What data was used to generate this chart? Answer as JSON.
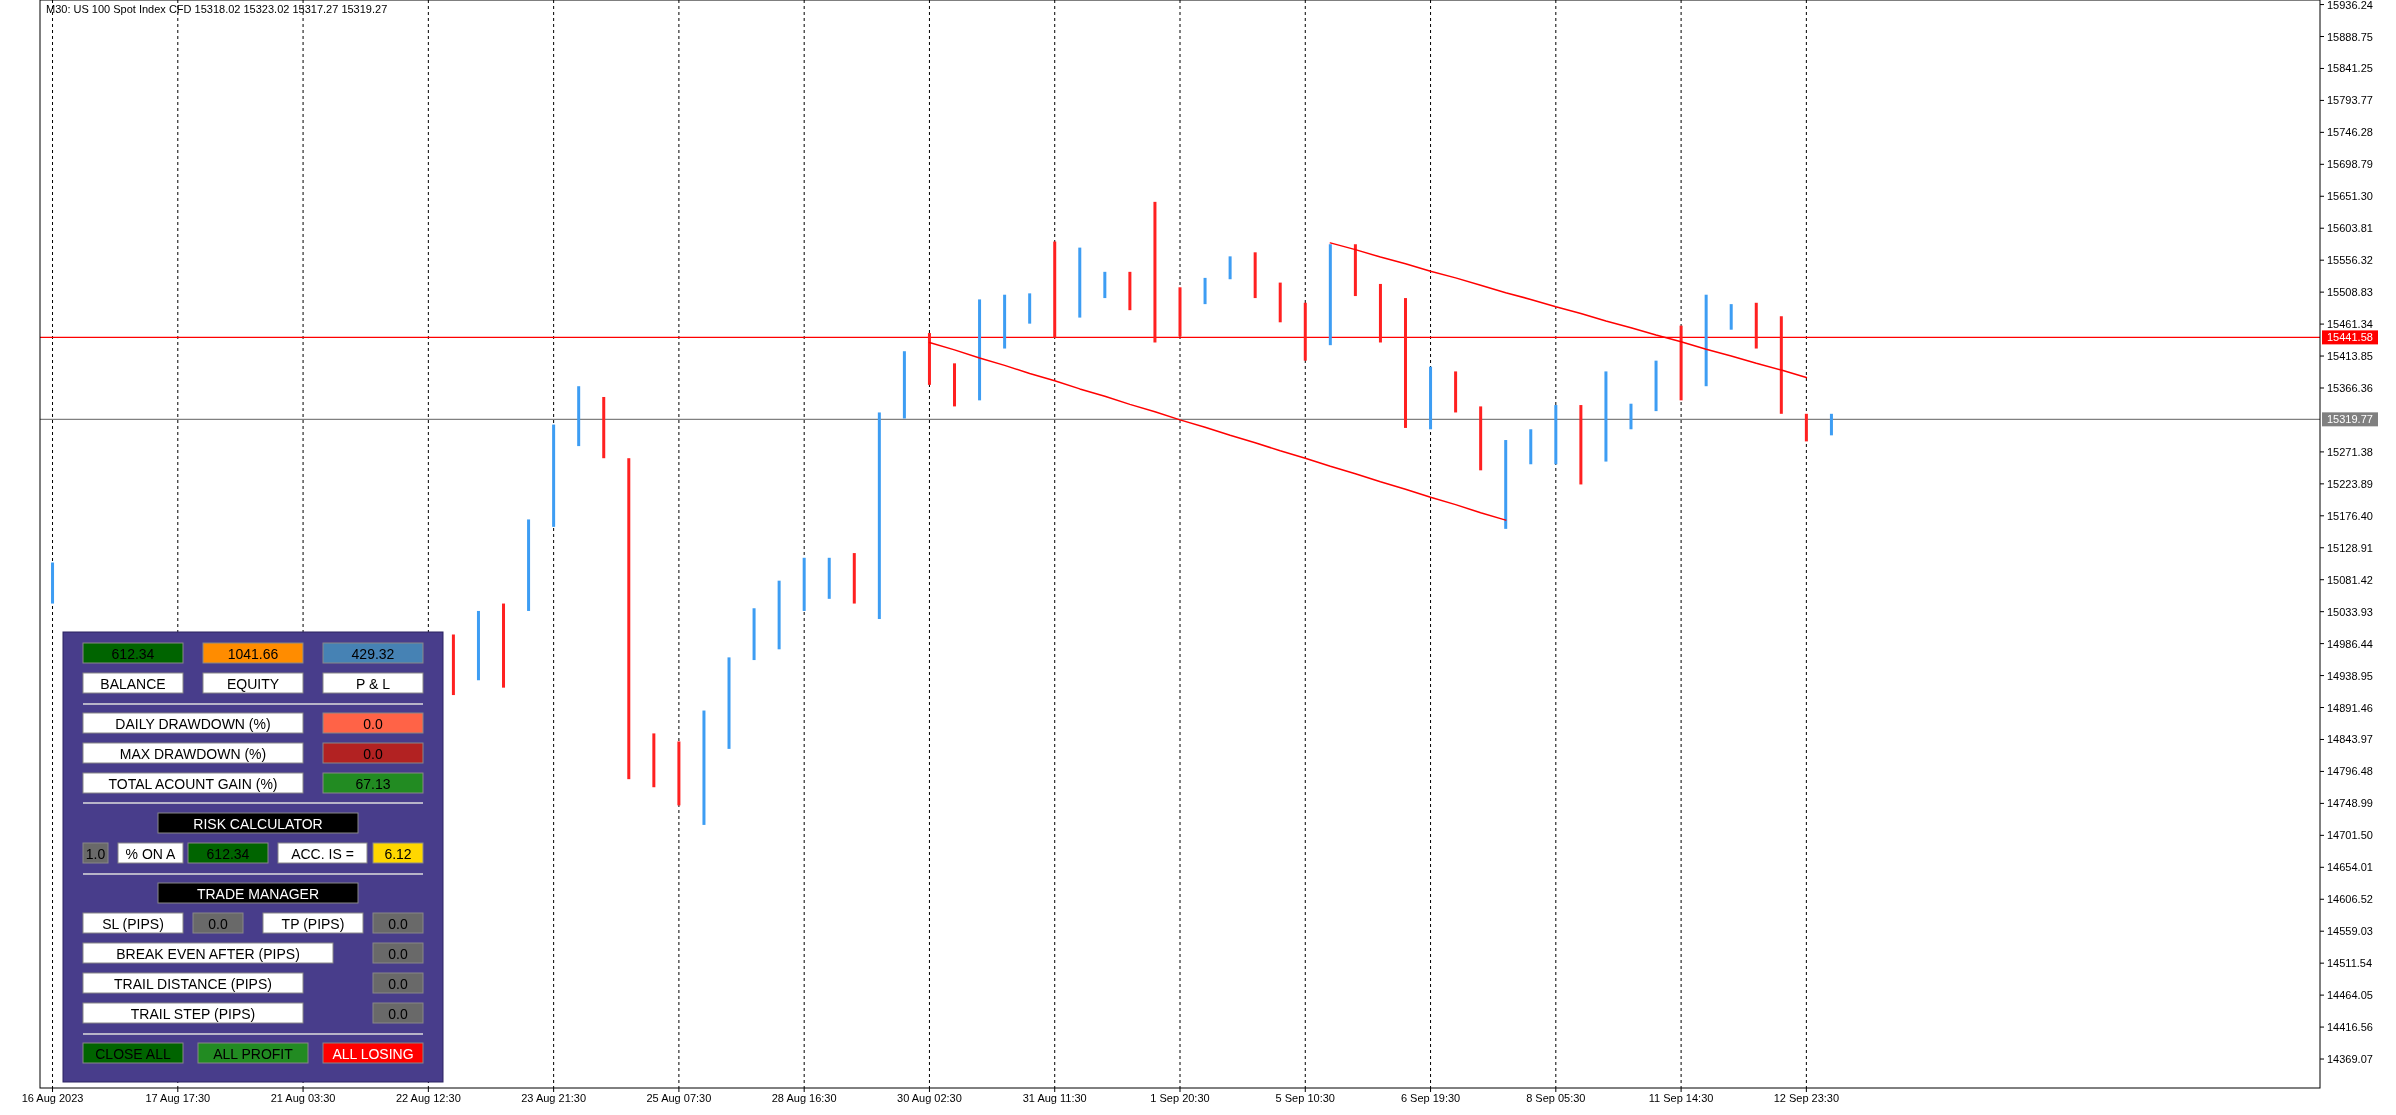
{
  "chart_data": [
    {
      "type": "bar",
      "title": "M30:  US 100 Spot Index CFD  15318.02 15323.02 15317.27 15319.27",
      "categories": [
        "16 Aug 2023",
        null,
        null,
        null,
        null,
        "17 Aug 17:30",
        null,
        null,
        null,
        null,
        "21 Aug 03:30",
        null,
        null,
        null,
        null,
        "22 Aug 12:30",
        null,
        null,
        null,
        null,
        "23 Aug 21:30",
        null,
        null,
        null,
        null,
        "25 Aug 07:30",
        null,
        null,
        null,
        null,
        "28 Aug 16:30",
        null,
        null,
        null,
        null,
        "30 Aug 02:30",
        null,
        null,
        null,
        null,
        "31 Aug 11:30",
        null,
        null,
        null,
        null,
        "1 Sep 20:30",
        null,
        null,
        null,
        null,
        "5 Sep 10:30",
        null,
        null,
        null,
        null,
        "6 Sep 19:30",
        null,
        null,
        null,
        null,
        "8 Sep 05:30",
        null,
        null,
        null,
        null,
        "11 Sep 14:30",
        null,
        null,
        null,
        null,
        "12 Sep 23:30",
        null,
        null,
        null,
        null,
        null,
        null,
        null,
        null,
        null,
        null,
        null,
        null,
        null,
        null,
        null,
        null,
        null,
        null,
        null,
        null
      ],
      "ylim": [
        14326,
        15943
      ],
      "yticks": [
        15936.24,
        15888.75,
        15841.25,
        15793.77,
        15746.28,
        15698.79,
        {
          "value": 15651.3,
          "label": "15651.30"
        },
        15603.81,
        15556.32,
        15508.83,
        15461.34,
        15413.85,
        15366.36,
        15271.38,
        15223.89,
        {
          "value": 15176.4,
          "label": "15176.40"
        },
        15128.91,
        15081.42,
        15033.93,
        14986.44,
        14938.95,
        14891.46,
        14843.97,
        14796.48,
        14748.99,
        {
          "value": 14701.5,
          "label": "14701.50"
        },
        14654.01,
        14606.52,
        14559.03,
        14511.54,
        14464.05,
        14416.56,
        14369.07
      ],
      "grid": "x",
      "line_style": "solid",
      "series": [
        {
          "type": "bar",
          "base": [
            15046,
            null,
            null,
            null,
            null,
            null,
            null,
            null,
            null,
            null,
            null,
            null,
            null,
            null,
            null,
            null,
            14910,
            14932,
            14921,
            15035,
            15160,
            15280,
            15262,
            14785,
            14773,
            14746,
            14717,
            14830,
            14962,
            14978,
            15035,
            15053,
            15046,
            15023,
            15321,
            15371,
            15339,
            15348,
            15425,
            15462,
            15441,
            15471,
            15500,
            15482,
            15434,
            15443,
            15491,
            15528,
            15500,
            15464,
            15407,
            15430,
            15503,
            15434,
            15307,
            15305,
            15330,
            15244,
            15157,
            15253,
            15253,
            15223,
            15257,
            15305,
            15332,
            15348,
            15369,
            15453,
            15425,
            15328,
            15287,
            15296,
            null,
            null,
            null,
            null,
            null,
            null,
            null,
            null,
            null,
            null,
            null,
            null,
            null,
            null,
            null,
            null,
            null,
            null,
            null
          ],
          "values": [
            61,
            null,
            null,
            null,
            null,
            null,
            null,
            null,
            null,
            null,
            null,
            null,
            null,
            null,
            null,
            null,
            90,
            103,
            125,
            136,
            152,
            89,
            91,
            477,
            80,
            95,
            170,
            136,
            77,
            102,
            79,
            61,
            75,
            307,
            100,
            77,
            64,
            150,
            80,
            45,
            143,
            104,
            39,
            57,
            209,
            73,
            39,
            34,
            68,
            59,
            86,
            150,
            77,
            87,
            193,
            93,
            61,
            95,
            132,
            52,
            88,
            118,
            134,
            38,
            75,
            111,
            136,
            38,
            68,
            145,
            41,
            32,
            null,
            null,
            null,
            null,
            null,
            null,
            null,
            null,
            null,
            null,
            null,
            null,
            null,
            null,
            null,
            null,
            null,
            null,
            null
          ],
          "colors": [
            "#3d9df3",
            null,
            null,
            null,
            null,
            null,
            null,
            null,
            null,
            null,
            null,
            null,
            null,
            null,
            null,
            null,
            "#ff2020",
            "#3d9df3",
            "#ff2020",
            "#3d9df3",
            "#3d9df3",
            "#3d9df3",
            "#ff2020",
            "#ff2020",
            "#ff2020",
            "#ff2020",
            "#3d9df3",
            "#3d9df3",
            "#3d9df3",
            "#3d9df3",
            "#3d9df3",
            "#3d9df3",
            "#ff2020",
            "#3d9df3",
            "#3d9df3",
            "#ff2020",
            "#ff2020",
            "#3d9df3",
            "#3d9df3",
            "#3d9df3",
            "#ff2020",
            "#3d9df3",
            "#3d9df3",
            "#ff2020",
            "#ff2020",
            "#ff2020",
            "#3d9df3",
            "#3d9df3",
            "#ff2020",
            "#ff2020",
            "#ff2020",
            "#3d9df3",
            "#ff2020",
            "#ff2020",
            "#ff2020",
            "#3d9df3",
            "#ff2020",
            "#ff2020",
            "#3d9df3",
            "#3d9df3",
            "#3d9df3",
            "#ff2020",
            "#3d9df3",
            "#3d9df3",
            "#3d9df3",
            "#ff2020",
            "#3d9df3",
            "#3d9df3",
            "#ff2020",
            "#ff2020",
            "#ff2020",
            "#3d9df3",
            null,
            null,
            null,
            null,
            null,
            null,
            null,
            null,
            null,
            null,
            null,
            null,
            null,
            null,
            null,
            null,
            null,
            null,
            null
          ]
        },
        {
          "type": "line",
          "color": "#ff0000",
          "values": [
            null,
            null,
            null,
            null,
            null,
            null,
            null,
            null,
            null,
            null,
            null,
            null,
            null,
            null,
            null,
            null,
            null,
            null,
            null,
            null,
            null,
            null,
            null,
            null,
            null,
            null,
            null,
            null,
            null,
            null,
            null,
            null,
            null,
            null,
            null,
            15434,
            15423,
            15411,
            15400,
            15388,
            15377,
            15365,
            15354,
            15342,
            15331,
            15319,
            15308,
            15296,
            15285,
            15273,
            15262,
            15250,
            15239,
            15227,
            15216,
            15204,
            15193,
            15181,
            15170,
            null,
            null,
            null,
            null,
            null,
            null,
            null,
            null,
            null,
            null,
            null,
            null,
            null,
            null,
            null,
            null,
            null,
            null,
            null,
            null,
            null,
            null,
            null,
            null,
            null,
            null,
            null,
            null,
            null,
            null,
            null,
            null
          ]
        },
        {
          "type": "line",
          "color": "#ff0000",
          "values": [
            null,
            null,
            null,
            null,
            null,
            null,
            null,
            null,
            null,
            null,
            null,
            null,
            null,
            null,
            null,
            null,
            null,
            null,
            null,
            null,
            null,
            null,
            null,
            null,
            null,
            null,
            null,
            null,
            null,
            null,
            null,
            null,
            null,
            null,
            null,
            null,
            null,
            null,
            null,
            null,
            null,
            null,
            null,
            null,
            null,
            null,
            null,
            null,
            null,
            null,
            null,
            15582,
            15572,
            15561,
            15551,
            15540,
            15530,
            15519,
            15508,
            15498,
            15487,
            15477,
            15466,
            15456,
            15445,
            15435,
            15424,
            15414,
            15403,
            15393,
            15382,
            null,
            null,
            null,
            null,
            null,
            null,
            null,
            null,
            null,
            null,
            null,
            null,
            null,
            null,
            null,
            null,
            null,
            null,
            null,
            null
          ]
        }
      ],
      "ref_lines": [
        {
          "axis": "y",
          "value": 15441.58,
          "label": "15441.58",
          "color": "#ff0000"
        },
        {
          "axis": "y",
          "value": 15319.77,
          "label": "15319.77",
          "color": "#808080"
        }
      ]
    },
    {
      "type": "other",
      "annotations": [
        "612.34",
        "1041.66",
        "429.32",
        "BALANCE",
        "EQUITY",
        "P & L",
        "DAILY DRAWDOWN (%)",
        "0.0",
        "MAX DRAWDOWN  (%)",
        "0.0",
        "TOTAL ACOUNT GAIN  (%)",
        "67.13",
        "RISK CALCULATOR",
        "1.0",
        "% ON A",
        "612.34",
        "ACC.  IS =",
        "6.12",
        "TRADE MANAGER",
        "SL (PIPS)",
        "0.0",
        "TP  (PIPS)",
        "0.0",
        "BREAK EVEN AFTER (PIPS)",
        "0.0",
        "TRAIL DISTANCE (PIPS)",
        "0.0",
        "TRAIL STEP (PIPS)",
        "0.0",
        "CLOSE ALL",
        "ALL PROFIT",
        "ALL LOSING"
      ],
      "colors": [
        "#006400",
        "#ff8c00",
        "#4682b4",
        "#ffffff",
        "#ffffff",
        "#ffffff",
        "#ffffff",
        "#ff6347",
        "#ffffff",
        "#b22222",
        "#ffffff",
        "#228b22",
        "#000000",
        "#696969",
        "#ffffff",
        "#006400",
        "#ffffff",
        "#ffd700",
        "#000000",
        "#ffffff",
        "#696969",
        "#ffffff",
        "#696969",
        "#ffffff",
        "#696969",
        "#ffffff",
        "#696969",
        "#ffffff",
        "#696969",
        "#006400",
        "#228b22",
        "#ff0000"
      ]
    }
  ]
}
